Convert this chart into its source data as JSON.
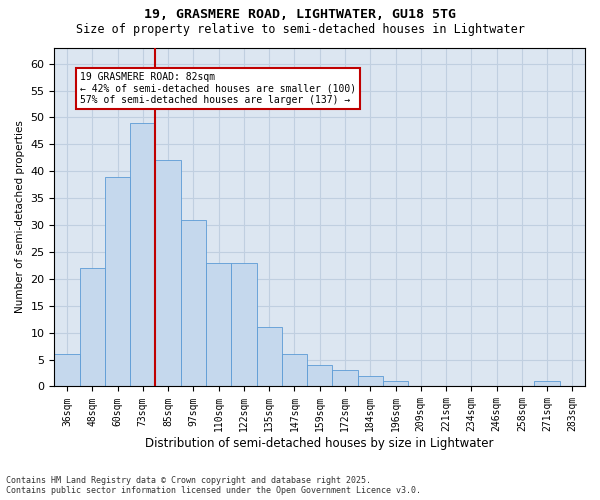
{
  "title1": "19, GRASMERE ROAD, LIGHTWATER, GU18 5TG",
  "title2": "Size of property relative to semi-detached houses in Lightwater",
  "xlabel": "Distribution of semi-detached houses by size in Lightwater",
  "ylabel": "Number of semi-detached properties",
  "categories": [
    "36sqm",
    "48sqm",
    "60sqm",
    "73sqm",
    "85sqm",
    "97sqm",
    "110sqm",
    "122sqm",
    "135sqm",
    "147sqm",
    "159sqm",
    "172sqm",
    "184sqm",
    "196sqm",
    "209sqm",
    "221sqm",
    "234sqm",
    "246sqm",
    "258sqm",
    "271sqm",
    "283sqm"
  ],
  "values": [
    6,
    22,
    39,
    49,
    42,
    31,
    23,
    23,
    11,
    6,
    4,
    3,
    2,
    1,
    0,
    0,
    0,
    0,
    0,
    1,
    0
  ],
  "bar_color": "#c5d8ed",
  "bar_edge_color": "#5b9bd5",
  "bar_width": 1.0,
  "vline_color": "#c00000",
  "vline_x": 3.5,
  "annotation_title": "19 GRASMERE ROAD: 82sqm",
  "annotation_line1": "← 42% of semi-detached houses are smaller (100)",
  "annotation_line2": "57% of semi-detached houses are larger (137) →",
  "annotation_box_color": "#c00000",
  "ylim": [
    0,
    63
  ],
  "yticks": [
    0,
    5,
    10,
    15,
    20,
    25,
    30,
    35,
    40,
    45,
    50,
    55,
    60
  ],
  "grid_color": "#c0cfe0",
  "background_color": "#dce6f1",
  "footnote1": "Contains HM Land Registry data © Crown copyright and database right 2025.",
  "footnote2": "Contains public sector information licensed under the Open Government Licence v3.0."
}
